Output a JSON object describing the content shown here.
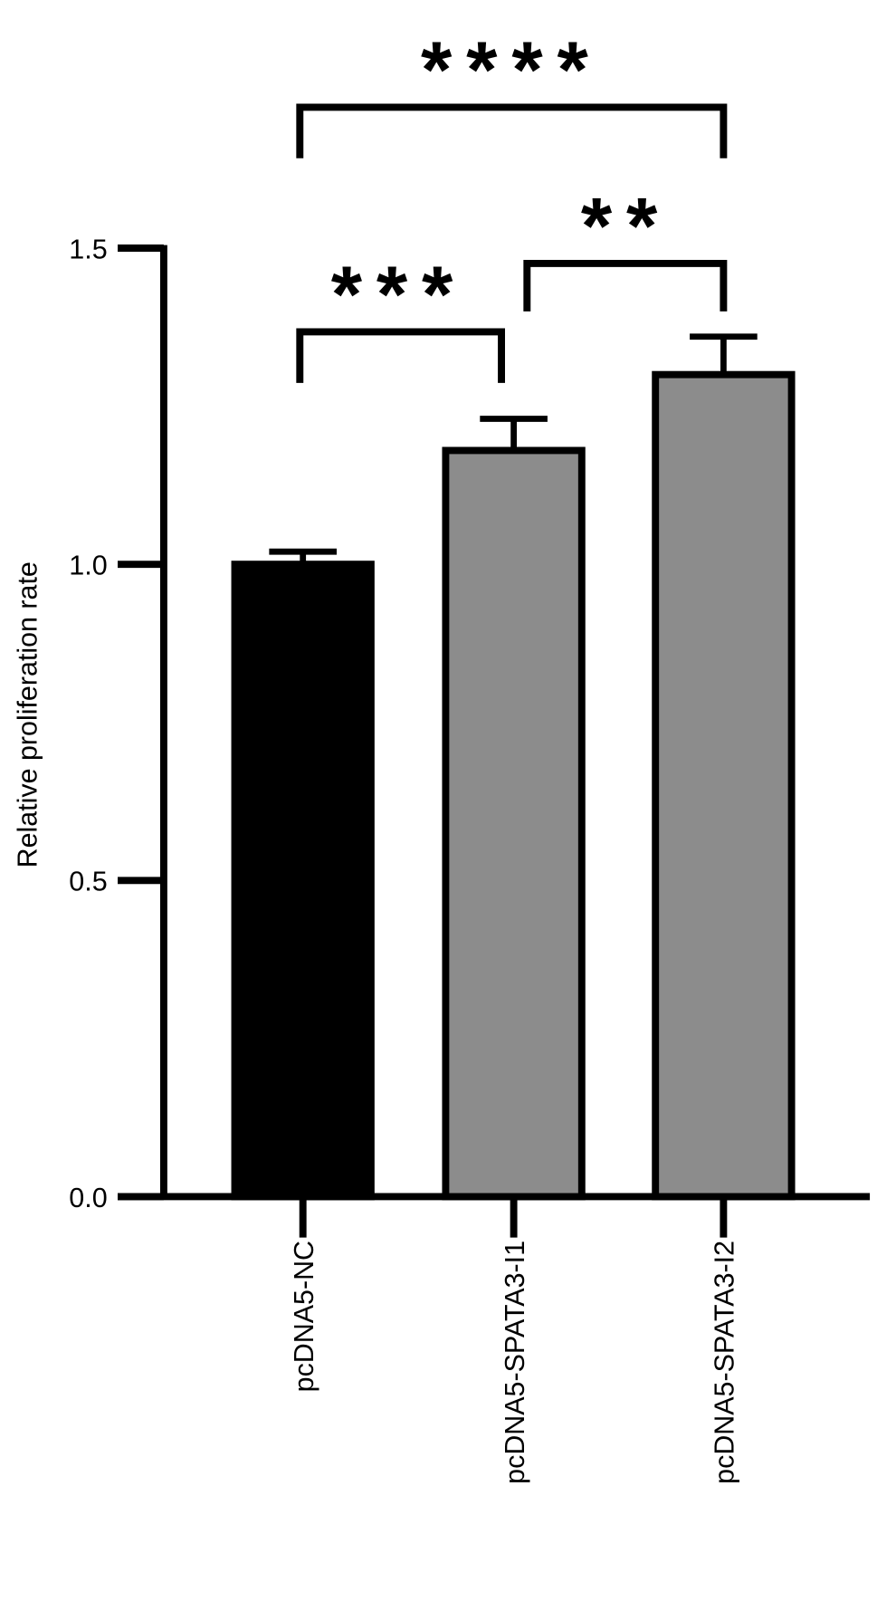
{
  "chart_data": {
    "type": "bar",
    "y_label": "Relative proliferation rate",
    "categories": [
      "pcDNA5-NC",
      "pcDNA5-SPATA3-I1",
      "pcDNA5-SPATA3-I2"
    ],
    "values": [
      1.0,
      1.18,
      1.3
    ],
    "errors": [
      0.02,
      0.05,
      0.06
    ],
    "colors": [
      "#000000",
      "#8c8c8c",
      "#8c8c8c"
    ],
    "ylim": [
      0,
      1.5
    ],
    "yticks": [
      {
        "value": 0,
        "label": "0.0"
      },
      0.5,
      {
        "value": 1,
        "label": "1.0"
      },
      1.5
    ],
    "annotations": [
      "****",
      "***",
      "**"
    ]
  }
}
